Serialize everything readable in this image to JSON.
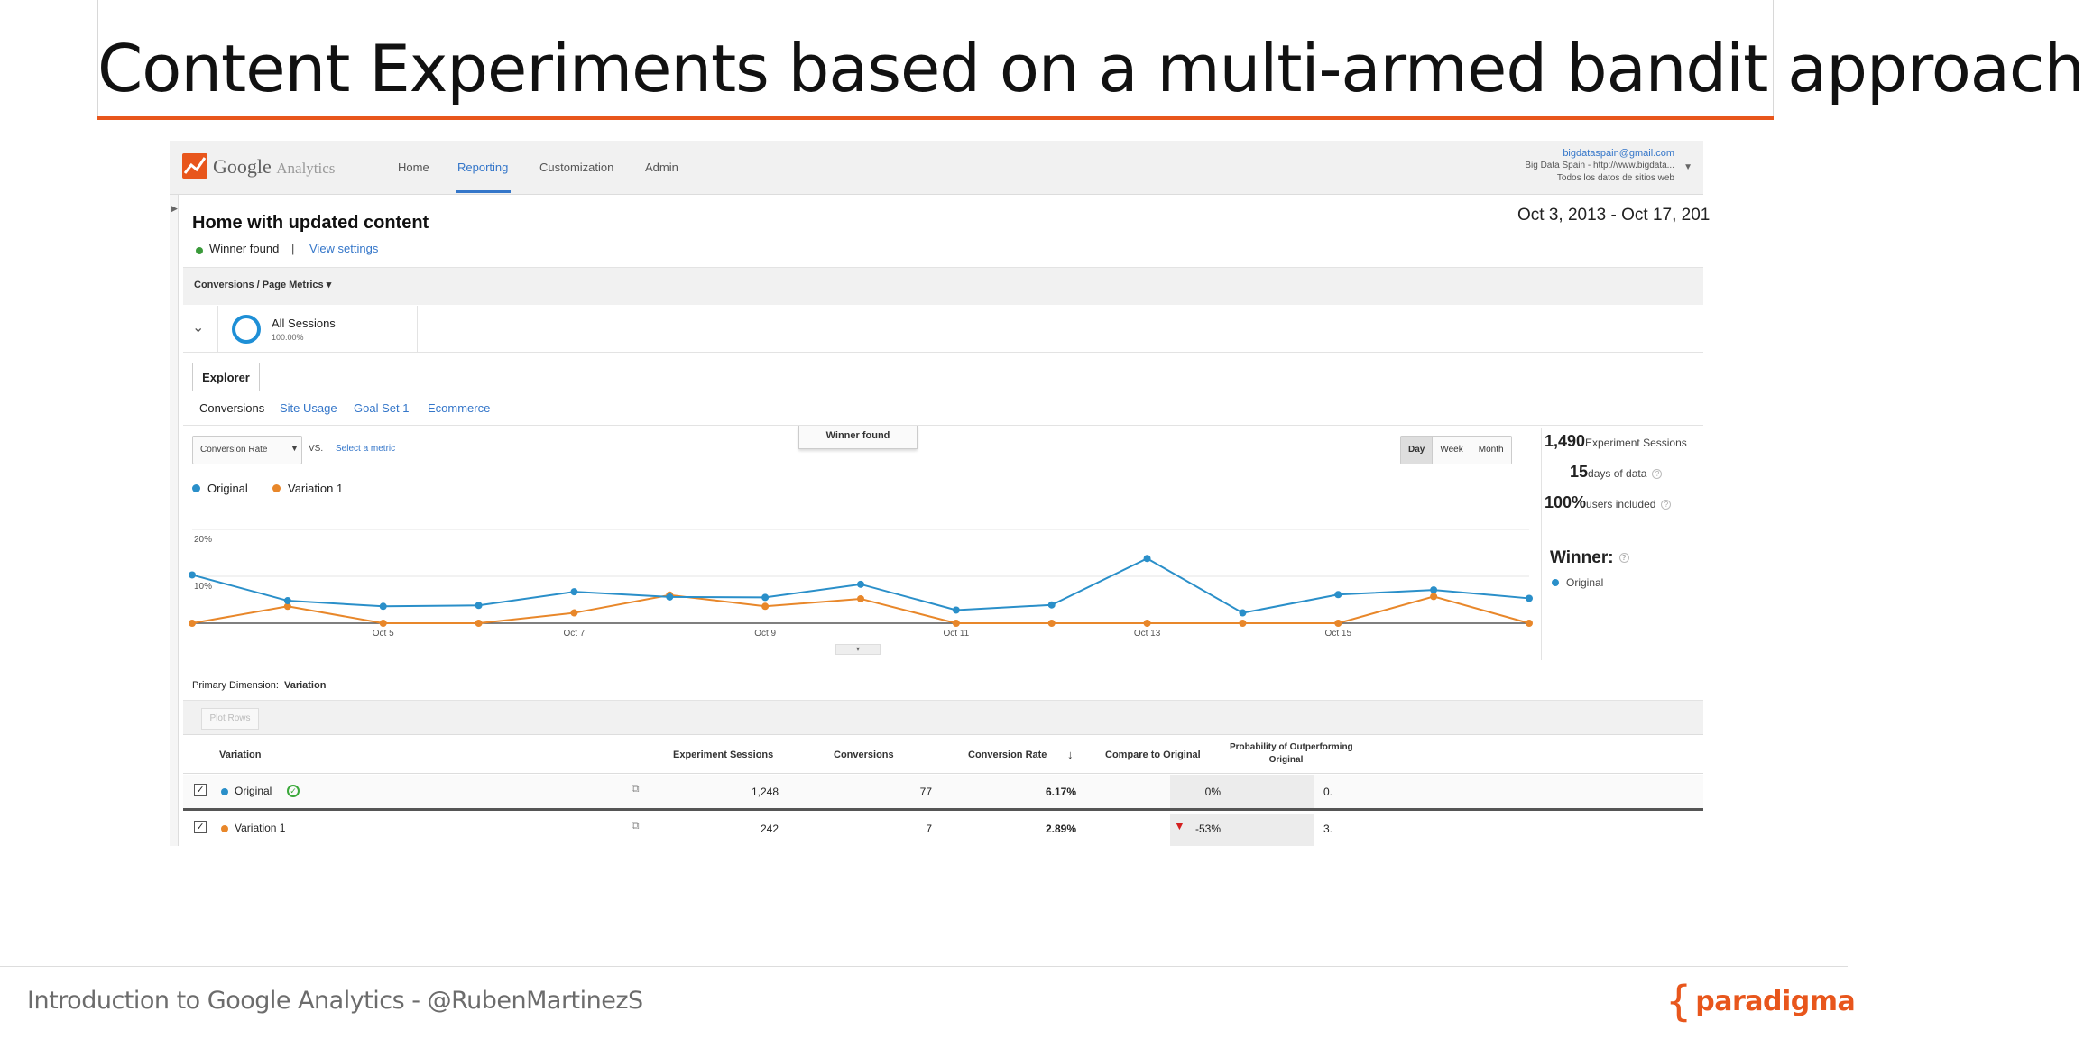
{
  "slide": {
    "title": "Content Experiments based on a multi-armed bandit approach",
    "footer": "Introduction to Google Analytics - @RubenMartinezS",
    "brand": "paradigma",
    "accent": "#e8561c"
  },
  "ga": {
    "logo_name": "Google",
    "logo_sub": "Analytics",
    "nav": [
      "Home",
      "Reporting",
      "Customization",
      "Admin"
    ],
    "active_nav": "Reporting",
    "account": {
      "email": "bigdataspain@gmail.com",
      "property": "Big Data Spain - http://www.bigdata...",
      "view": "Todos los datos de sitios web"
    }
  },
  "report": {
    "title": "Home with updated content",
    "status": "Winner found",
    "separator": "|",
    "view_settings": "View settings",
    "date_range": "Oct 3, 2013 - Oct 17, 201",
    "conversions_menu": "Conversions / Page Metrics",
    "segment": {
      "name": "All Sessions",
      "pct": "100.00%"
    },
    "explorer_tab": "Explorer",
    "subtabs": [
      "Conversions",
      "Site Usage",
      "Goal Set 1",
      "Ecommerce"
    ],
    "metric": "Conversion Rate",
    "vs": "VS.",
    "select_metric": "Select a metric",
    "winner_callout": "Winner found",
    "periods": [
      "Day",
      "Week",
      "Month"
    ]
  },
  "side": {
    "sessions_num": "1,490",
    "sessions_label": "Experiment Sessions",
    "days_num": "15",
    "days_label": "days of data",
    "users_num": "100%",
    "users_label": "users included",
    "help": "?",
    "winner_label": "Winner:",
    "winner": "Original"
  },
  "chart_data": {
    "type": "line",
    "x": [
      "Oct 3",
      "Oct 4",
      "Oct 5",
      "Oct 6",
      "Oct 7",
      "Oct 8",
      "Oct 9",
      "Oct 10",
      "Oct 11",
      "Oct 12",
      "Oct 13",
      "Oct 14",
      "Oct 15",
      "Oct 16",
      "Oct 17"
    ],
    "x_tick_labels": [
      "Oct 5",
      "Oct 7",
      "Oct 9",
      "Oct 11",
      "Oct 13",
      "Oct 15"
    ],
    "y_tick_labels": [
      "20%",
      "10%"
    ],
    "ylim": [
      0,
      20
    ],
    "series": [
      {
        "name": "Original",
        "color": "#2a8fc9",
        "values": [
          10.3,
          4.8,
          3.6,
          3.8,
          6.7,
          5.6,
          5.5,
          8.3,
          2.8,
          3.9,
          13.8,
          2.2,
          6.1,
          7.1,
          5.3
        ]
      },
      {
        "name": "Variation 1",
        "color": "#e8872a",
        "values": [
          0,
          3.6,
          0,
          0,
          2.2,
          6.0,
          3.6,
          5.2,
          0,
          0,
          0,
          0,
          0,
          5.7,
          0
        ]
      }
    ],
    "grid": true
  },
  "table": {
    "primary_dimension_label": "Primary Dimension:",
    "primary_dimension": "Variation",
    "plot_rows": "Plot Rows",
    "headers": [
      "Variation",
      "Experiment Sessions",
      "Conversions",
      "Conversion Rate",
      "Compare to Original",
      "Probability of Outperforming",
      "Original"
    ],
    "sort_icon": "↓",
    "check": "✓",
    "rows": [
      {
        "name": "Original",
        "color": "#2a8fc9",
        "sessions": "1,248",
        "conversions": "77",
        "rate": "6.17%",
        "compare": "0%",
        "probability": "0."
      },
      {
        "name": "Variation 1",
        "color": "#e8872a",
        "sessions": "242",
        "conversions": "7",
        "rate": "2.89%",
        "compare": "-53%",
        "probability": "3."
      }
    ]
  }
}
